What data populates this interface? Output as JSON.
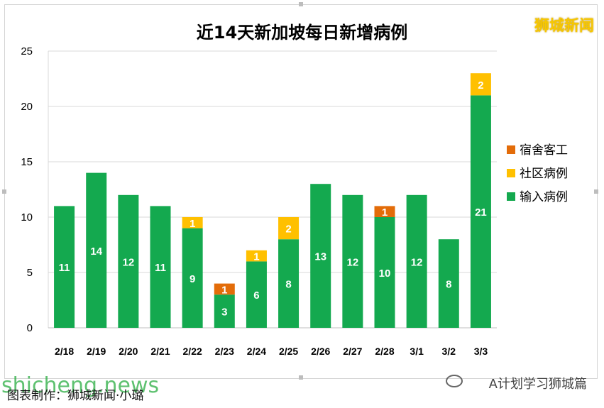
{
  "title": "近14天新加坡每日新增病例",
  "watermark": "狮城新闻",
  "footer": {
    "credit": "图表制作：狮城新闻·小璐",
    "site": "shicheng.news",
    "account": "A计划学习狮城篇",
    "account_icon": "wechat-icon"
  },
  "colors": {
    "dorm": "#e36c09",
    "community": "#ffc000",
    "imported": "#14a94f",
    "axis_text": "#000000",
    "grid": "#d9d9d9"
  },
  "chart_data": {
    "type": "bar",
    "stacked": true,
    "categories": [
      "2/18",
      "2/19",
      "2/20",
      "2/21",
      "2/22",
      "2/23",
      "2/24",
      "2/25",
      "2/26",
      "2/27",
      "2/28",
      "3/1",
      "3/2",
      "3/3"
    ],
    "series": [
      {
        "name": "输入病例",
        "color": "#14a94f",
        "values": [
          11,
          14,
          12,
          11,
          9,
          3,
          6,
          8,
          13,
          12,
          10,
          12,
          8,
          21
        ]
      },
      {
        "name": "宿舍客工",
        "color": "#e36c09",
        "values": [
          0,
          0,
          0,
          0,
          0,
          1,
          0,
          0,
          0,
          0,
          1,
          0,
          0,
          0
        ]
      },
      {
        "name": "社区病例",
        "color": "#ffc000",
        "values": [
          0,
          0,
          0,
          0,
          1,
          0,
          1,
          2,
          0,
          0,
          0,
          0,
          0,
          2
        ]
      }
    ],
    "legend": {
      "position": "right",
      "order": [
        "宿舍客工",
        "社区病例",
        "输入病例"
      ]
    },
    "yticks": [
      0,
      5,
      10,
      15,
      20,
      25
    ],
    "ylim": [
      0,
      25
    ],
    "grid": true,
    "xlabel": "",
    "ylabel": ""
  }
}
